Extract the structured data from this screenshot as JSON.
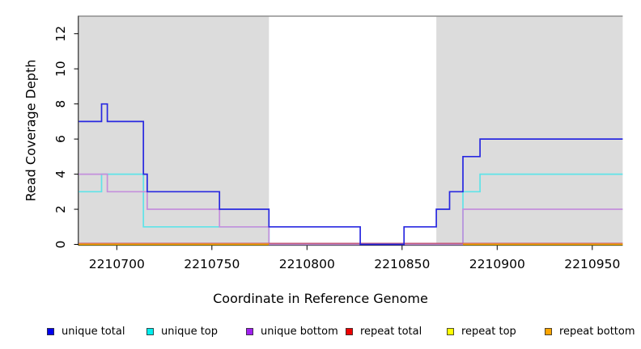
{
  "chart_data": {
    "type": "line",
    "subtype": "step-post-coverage",
    "title": "",
    "xlabel": "Coordinate in Reference Genome",
    "ylabel": "Read Coverage Depth",
    "xlim": [
      2210680,
      2210966
    ],
    "ylim": [
      0,
      13
    ],
    "x_ticks": [
      "2210700",
      "2210750",
      "2210800",
      "2210850",
      "2210900",
      "2210950"
    ],
    "x_tick_values": [
      2210700,
      2210750,
      2210800,
      2210850,
      2210900,
      2210950
    ],
    "y_ticks": [
      "0",
      "2",
      "4",
      "6",
      "8",
      "10",
      "12"
    ],
    "y_tick_values": [
      0,
      2,
      4,
      6,
      8,
      10,
      12
    ],
    "grid": false,
    "shaded_regions": [
      {
        "name": "left-gray-region",
        "from": 2210680,
        "to": 2210780,
        "color": "#DCDCDC"
      },
      {
        "name": "right-gray-region",
        "from": 2210868,
        "to": 2210966,
        "color": "#DCDCDC"
      }
    ],
    "top_boundary_line": {
      "y": 13,
      "color": "#8F8F8F"
    },
    "series": [
      {
        "name": "repeat top",
        "color": "#FFFF00",
        "points": [
          [
            2210680,
            0
          ],
          [
            2210966,
            0
          ]
        ]
      },
      {
        "name": "unique top",
        "color": "#5FE3E8",
        "points": [
          [
            2210680,
            3
          ],
          [
            2210692,
            4
          ],
          [
            2210714,
            1
          ],
          [
            2210780,
            0
          ],
          [
            2210882,
            3
          ],
          [
            2210891,
            4
          ],
          [
            2210966,
            4
          ]
        ]
      },
      {
        "name": "unique bottom",
        "color": "#C48FDC",
        "points": [
          [
            2210680,
            4
          ],
          [
            2210695,
            3
          ],
          [
            2210716,
            2
          ],
          [
            2210754,
            1
          ],
          [
            2210780,
            0
          ],
          [
            2210882,
            2
          ],
          [
            2210966,
            2
          ]
        ]
      },
      {
        "name": "repeat total",
        "color": "#C25C7C",
        "points": [
          [
            2210680,
            0
          ],
          [
            2210966,
            0
          ]
        ]
      },
      {
        "name": "repeat bottom",
        "color": "#FFA500",
        "points": [
          [
            2210680,
            0
          ],
          [
            2210966,
            0
          ]
        ],
        "draw_ranges": [
          [
            2210680,
            2210780
          ],
          [
            2210882,
            2210966
          ]
        ]
      },
      {
        "name": "unique total",
        "color": "#2828E0",
        "points": [
          [
            2210680,
            7
          ],
          [
            2210692,
            8
          ],
          [
            2210695,
            7
          ],
          [
            2210714,
            4
          ],
          [
            2210716,
            3
          ],
          [
            2210754,
            2
          ],
          [
            2210780,
            1
          ],
          [
            2210828,
            0
          ],
          [
            2210851,
            1
          ],
          [
            2210868,
            2
          ],
          [
            2210875,
            3
          ],
          [
            2210882,
            5
          ],
          [
            2210891,
            6
          ],
          [
            2210966,
            6
          ]
        ]
      }
    ],
    "legend": {
      "position": "bottom",
      "items": [
        {
          "label": "unique total",
          "color": "#0000EE"
        },
        {
          "label": "unique top",
          "color": "#00EEEE"
        },
        {
          "label": "unique bottom",
          "color": "#A020F0"
        },
        {
          "label": "repeat total",
          "color": "#EE0000"
        },
        {
          "label": "repeat top",
          "color": "#FFFF00"
        },
        {
          "label": "repeat bottom",
          "color": "#FFA500"
        }
      ]
    }
  }
}
